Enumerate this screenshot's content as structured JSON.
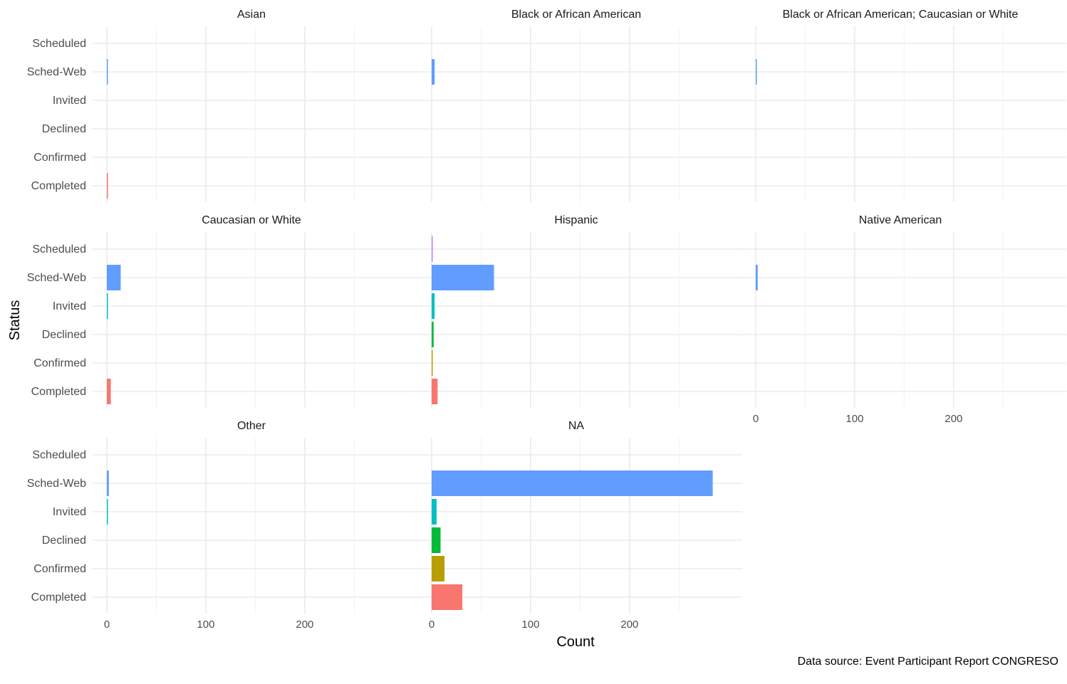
{
  "chart_data": {
    "type": "bar",
    "orientation": "horizontal",
    "layout": "facet_wrap",
    "facet_columns": 3,
    "xlabel": "Count",
    "ylabel": "Status",
    "caption": "Data source: Event Participant Report CONGRESO",
    "xlim": [
      0,
      285
    ],
    "x_ticks": [
      0,
      100,
      200
    ],
    "grid": true,
    "legend": "none",
    "categories": [
      "Scheduled",
      "Sched-Web",
      "Invited",
      "Declined",
      "Confirmed",
      "Completed"
    ],
    "category_colors": {
      "Scheduled": "#c77cff",
      "Sched-Web": "#619cff",
      "Invited": "#00bfc4",
      "Declined": "#00ba38",
      "Confirmed": "#b79f00",
      "Completed": "#f8766d"
    },
    "panels": [
      {
        "title": "Asian",
        "values": {
          "Scheduled": 0,
          "Sched-Web": 1,
          "Invited": 0,
          "Declined": 0,
          "Confirmed": 0,
          "Completed": 1
        }
      },
      {
        "title": "Black or African American",
        "values": {
          "Scheduled": 0,
          "Sched-Web": 3,
          "Invited": 0,
          "Declined": 0,
          "Confirmed": 0,
          "Completed": 0
        }
      },
      {
        "title": "Black or African American; Caucasian or White",
        "values": {
          "Scheduled": 0,
          "Sched-Web": 1,
          "Invited": 0,
          "Declined": 0,
          "Confirmed": 0,
          "Completed": 0
        }
      },
      {
        "title": "Caucasian or White",
        "values": {
          "Scheduled": 0,
          "Sched-Web": 14,
          "Invited": 1,
          "Declined": 0,
          "Confirmed": 0,
          "Completed": 4
        }
      },
      {
        "title": "Hispanic",
        "values": {
          "Scheduled": 1,
          "Sched-Web": 63,
          "Invited": 3,
          "Declined": 2,
          "Confirmed": 1,
          "Completed": 6
        }
      },
      {
        "title": "Native American",
        "values": {
          "Scheduled": 0,
          "Sched-Web": 2,
          "Invited": 0,
          "Declined": 0,
          "Confirmed": 0,
          "Completed": 0
        }
      },
      {
        "title": "Other",
        "values": {
          "Scheduled": 0,
          "Sched-Web": 2,
          "Invited": 1,
          "Declined": 0,
          "Confirmed": 0,
          "Completed": 0
        }
      },
      {
        "title": "NA",
        "values": {
          "Scheduled": 0,
          "Sched-Web": 284,
          "Invited": 5,
          "Declined": 9,
          "Confirmed": 13,
          "Completed": 31
        }
      }
    ]
  }
}
